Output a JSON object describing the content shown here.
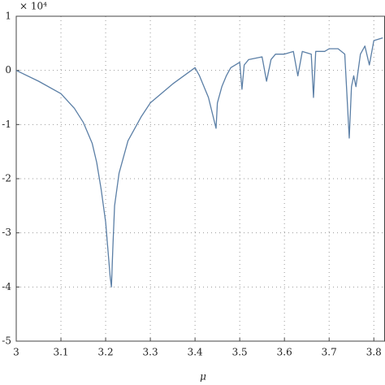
{
  "chart_data": {
    "type": "line",
    "multiplier_label": "× 10⁴",
    "x_label": "μ",
    "x": [
      3.0,
      3.05,
      3.1,
      3.13,
      3.15,
      3.17,
      3.18,
      3.19,
      3.2,
      3.205,
      3.21,
      3.213,
      3.216,
      3.22,
      3.23,
      3.25,
      3.28,
      3.3,
      3.35,
      3.4,
      3.41,
      3.43,
      3.447,
      3.45,
      3.46,
      3.47,
      3.48,
      3.5,
      3.505,
      3.51,
      3.52,
      3.55,
      3.56,
      3.57,
      3.58,
      3.6,
      3.62,
      3.63,
      3.64,
      3.66,
      3.665,
      3.67,
      3.69,
      3.7,
      3.72,
      3.735,
      3.745,
      3.75,
      3.755,
      3.76,
      3.77,
      3.78,
      3.79,
      3.8,
      3.82
    ],
    "values": [
      0.0,
      -0.2,
      -0.43,
      -0.7,
      -0.96,
      -1.35,
      -1.7,
      -2.2,
      -2.8,
      -3.3,
      -3.8,
      -4.0,
      -3.3,
      -2.5,
      -1.9,
      -1.3,
      -0.85,
      -0.6,
      -0.25,
      0.05,
      -0.1,
      -0.5,
      -1.07,
      -0.6,
      -0.3,
      -0.1,
      0.05,
      0.15,
      -0.35,
      0.1,
      0.2,
      0.25,
      -0.2,
      0.2,
      0.3,
      0.3,
      0.35,
      -0.1,
      0.35,
      0.3,
      -0.5,
      0.35,
      0.35,
      0.4,
      0.4,
      0.3,
      -1.25,
      -0.3,
      -0.1,
      -0.3,
      0.3,
      0.45,
      0.1,
      0.55,
      0.6
    ],
    "color": "#5b7fa6",
    "xlim": [
      3.0,
      3.825
    ],
    "ylim": [
      -5,
      1
    ],
    "xticks": [
      3,
      3.1,
      3.2,
      3.3,
      3.4,
      3.5,
      3.6,
      3.7,
      3.8
    ],
    "yticks": [
      -5,
      -4,
      -3,
      -2,
      -1,
      0,
      1
    ],
    "grid": true
  }
}
